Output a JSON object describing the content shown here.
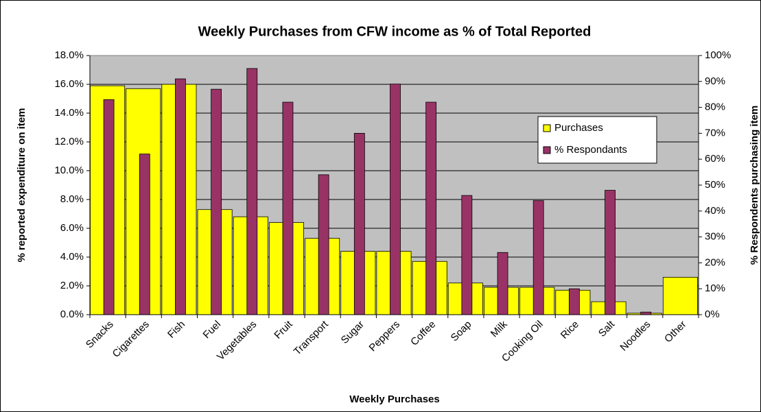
{
  "chart_data": {
    "type": "bar",
    "title": "Weekly Purchases from CFW income as % of Total Reported",
    "x_label": "Weekly Purchases",
    "y_label": "% reported expenditure on item",
    "y2_label": "% Respondents purchasing item",
    "categories": [
      "Snacks",
      "Cigarettes",
      "Fish",
      "Fuel",
      "Vegetables",
      "Fruit",
      "Transport",
      "Sugar",
      "Peppers",
      "Coffee",
      "Soap",
      "Milk",
      "Cooking Oil",
      "Rice",
      "Salt",
      "Noodles",
      "Other"
    ],
    "series": [
      {
        "name": "Purchases",
        "color": "#ffff00",
        "values": [
          15.9,
          15.7,
          16.0,
          7.3,
          6.8,
          6.4,
          5.3,
          4.4,
          4.4,
          3.7,
          2.2,
          1.9,
          1.9,
          1.7,
          0.9,
          0.1,
          2.6
        ]
      },
      {
        "name": "% Respondants",
        "color": "#993366",
        "axis": "y2",
        "values": [
          83,
          62,
          91,
          87,
          95,
          82,
          54,
          70,
          89,
          82,
          46,
          24,
          44,
          10,
          48,
          1,
          null
        ]
      }
    ],
    "ylim": [
      0,
      18
    ],
    "yticks": [
      {
        "value": 0,
        "label": "0.0%"
      },
      {
        "value": 2,
        "label": "2.0%"
      },
      {
        "value": 4,
        "label": "4.0%"
      },
      {
        "value": 6,
        "label": "6.0%"
      },
      {
        "value": 8,
        "label": "8.0%"
      },
      {
        "value": 10,
        "label": "10.0%"
      },
      {
        "value": 12,
        "label": "12.0%"
      },
      {
        "value": 14,
        "label": "14.0%"
      },
      {
        "value": 16,
        "label": "16.0%"
      },
      {
        "value": 18,
        "label": "18.0%"
      }
    ],
    "y2lim": [
      0,
      100
    ],
    "y2ticks": [
      {
        "value": 0,
        "label": "0%"
      },
      {
        "value": 10,
        "label": "10%"
      },
      {
        "value": 20,
        "label": "20%"
      },
      {
        "value": 30,
        "label": "30%"
      },
      {
        "value": 40,
        "label": "40%"
      },
      {
        "value": 50,
        "label": "50%"
      },
      {
        "value": 60,
        "label": "60%"
      },
      {
        "value": 70,
        "label": "70%"
      },
      {
        "value": 80,
        "label": "80%"
      },
      {
        "value": 90,
        "label": "90%"
      },
      {
        "value": 100,
        "label": "100%"
      }
    ],
    "grid": true,
    "legend": "right"
  }
}
